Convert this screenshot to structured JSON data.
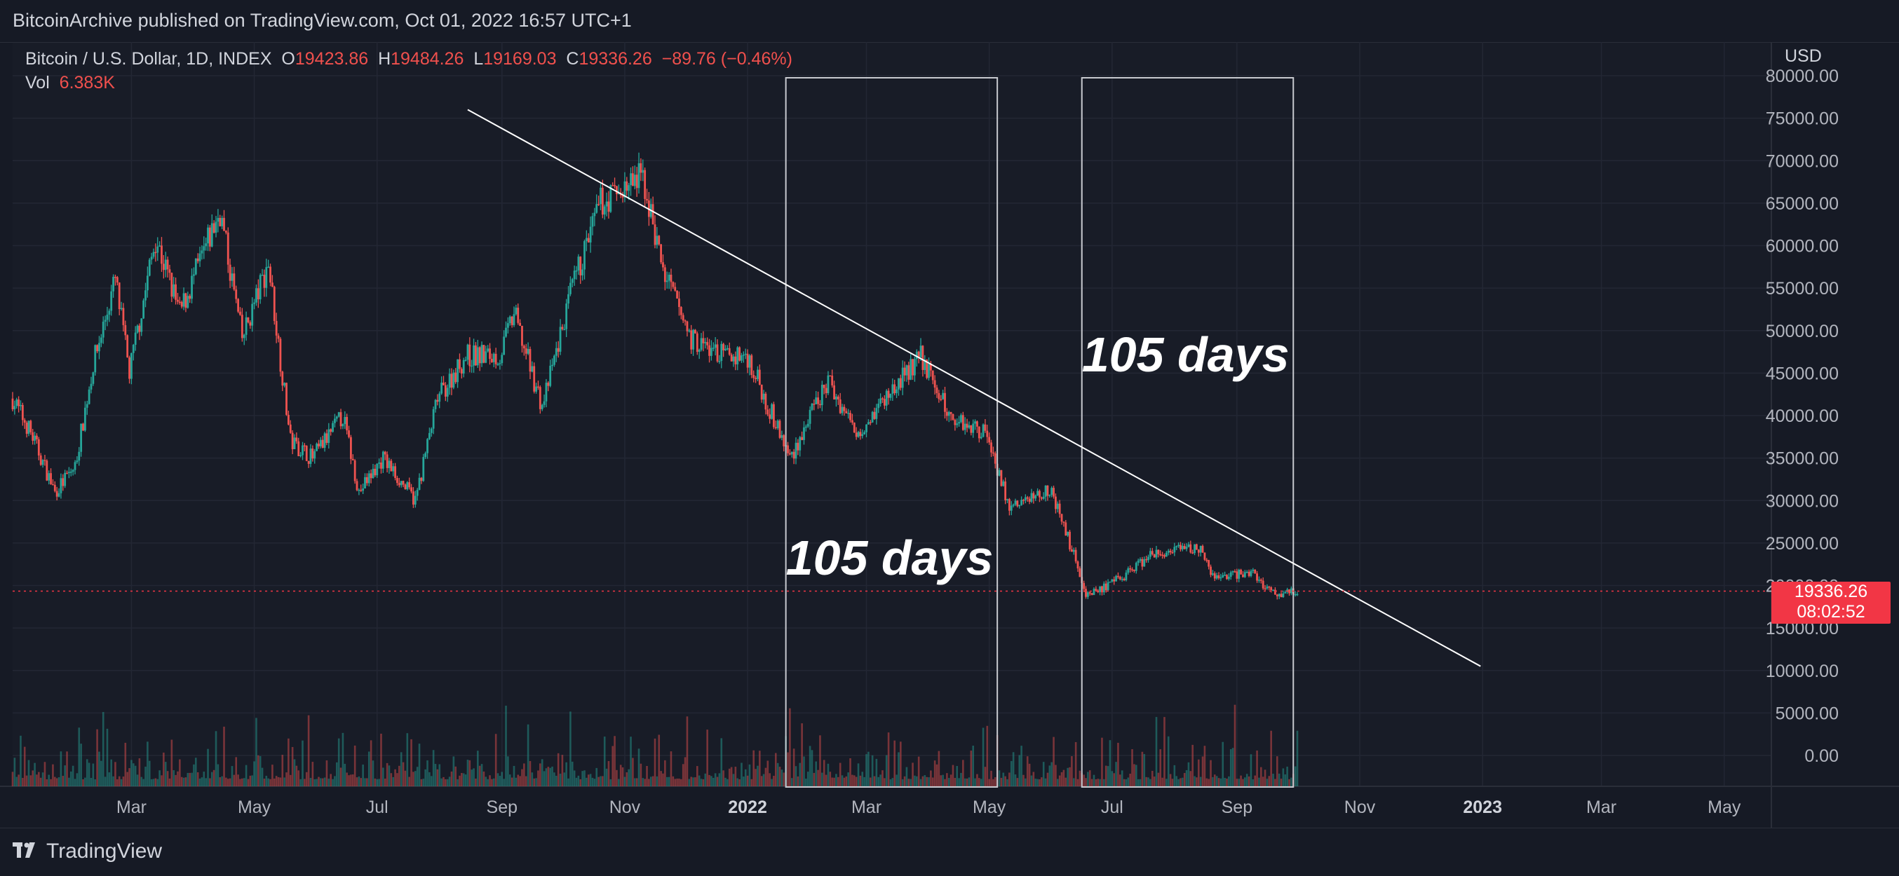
{
  "publisher_line": "BitcoinArchive published on TradingView.com, Oct 01, 2022 16:57 UTC+1",
  "legend": {
    "symbol": "Bitcoin / U.S. Dollar, 1D, INDEX",
    "open_label": "O",
    "open_value": "19423.86",
    "high_label": "H",
    "high_value": "19484.26",
    "low_label": "L",
    "low_value": "19169.03",
    "close_label": "C",
    "close_value": "19336.26",
    "change": "−89.76 (−0.46%)",
    "vol_label": "Vol",
    "vol_value": "6.383K"
  },
  "price_badge": {
    "price": "19336.26",
    "countdown": "08:02:52"
  },
  "footer": {
    "brand": "TradingView"
  },
  "chart_data": {
    "type": "candlestick",
    "currency_label": "USD",
    "y_ticks": [
      "80000.00",
      "75000.00",
      "70000.00",
      "65000.00",
      "60000.00",
      "55000.00",
      "50000.00",
      "45000.00",
      "40000.00",
      "35000.00",
      "30000.00",
      "25000.00",
      "20000.00",
      "15000.00",
      "10000.00",
      "5000.00",
      "0.00"
    ],
    "x_ticks": [
      "Mar",
      "May",
      "Jul",
      "Sep",
      "Nov",
      "2022",
      "Mar",
      "May",
      "Jul",
      "Sep",
      "Nov",
      "2023",
      "Mar",
      "May"
    ],
    "price_path": [
      [
        "2021-01-01",
        42000
      ],
      [
        "2021-01-10",
        38000
      ],
      [
        "2021-01-22",
        31000
      ],
      [
        "2021-02-01",
        34000
      ],
      [
        "2021-02-10",
        46000
      ],
      [
        "2021-02-21",
        56000
      ],
      [
        "2021-02-28",
        45000
      ],
      [
        "2021-03-13",
        61000
      ],
      [
        "2021-03-25",
        52000
      ],
      [
        "2021-04-14",
        64000
      ],
      [
        "2021-04-25",
        49000
      ],
      [
        "2021-05-08",
        58000
      ],
      [
        "2021-05-19",
        37000
      ],
      [
        "2021-05-30",
        35000
      ],
      [
        "2021-06-14",
        40000
      ],
      [
        "2021-06-22",
        31000
      ],
      [
        "2021-07-04",
        35000
      ],
      [
        "2021-07-20",
        30000
      ],
      [
        "2021-07-31",
        42000
      ],
      [
        "2021-08-14",
        47000
      ],
      [
        "2021-08-31",
        47000
      ],
      [
        "2021-09-07",
        52000
      ],
      [
        "2021-09-21",
        41000
      ],
      [
        "2021-10-06",
        55000
      ],
      [
        "2021-10-20",
        65000
      ],
      [
        "2021-11-10",
        68000
      ],
      [
        "2021-11-20",
        57000
      ],
      [
        "2021-12-04",
        49000
      ],
      [
        "2021-12-20",
        47000
      ],
      [
        "2022-01-01",
        47000
      ],
      [
        "2022-01-22",
        35000
      ],
      [
        "2022-02-10",
        44000
      ],
      [
        "2022-02-24",
        38000
      ],
      [
        "2022-03-28",
        47000
      ],
      [
        "2022-04-11",
        40000
      ],
      [
        "2022-04-30",
        38000
      ],
      [
        "2022-05-11",
        29000
      ],
      [
        "2022-05-31",
        31500
      ],
      [
        "2022-06-13",
        23000
      ],
      [
        "2022-06-18",
        19000
      ],
      [
        "2022-06-30",
        20000
      ],
      [
        "2022-07-20",
        23500
      ],
      [
        "2022-08-14",
        24500
      ],
      [
        "2022-08-19",
        21000
      ],
      [
        "2022-09-09",
        21500
      ],
      [
        "2022-09-19",
        19000
      ],
      [
        "2022-09-30",
        19336
      ]
    ],
    "volume_max_label": "",
    "trendline": {
      "from": [
        "2021-08-15",
        76000
      ],
      "to": [
        "2022-12-31",
        10500
      ]
    },
    "current_price": 19336.26,
    "ranges": [
      {
        "label": "105 days",
        "start": "2022-01-20",
        "end": "2022-05-05"
      },
      {
        "label": "105 days",
        "start": "2022-06-16",
        "end": "2022-09-29"
      }
    ],
    "grid": true
  }
}
